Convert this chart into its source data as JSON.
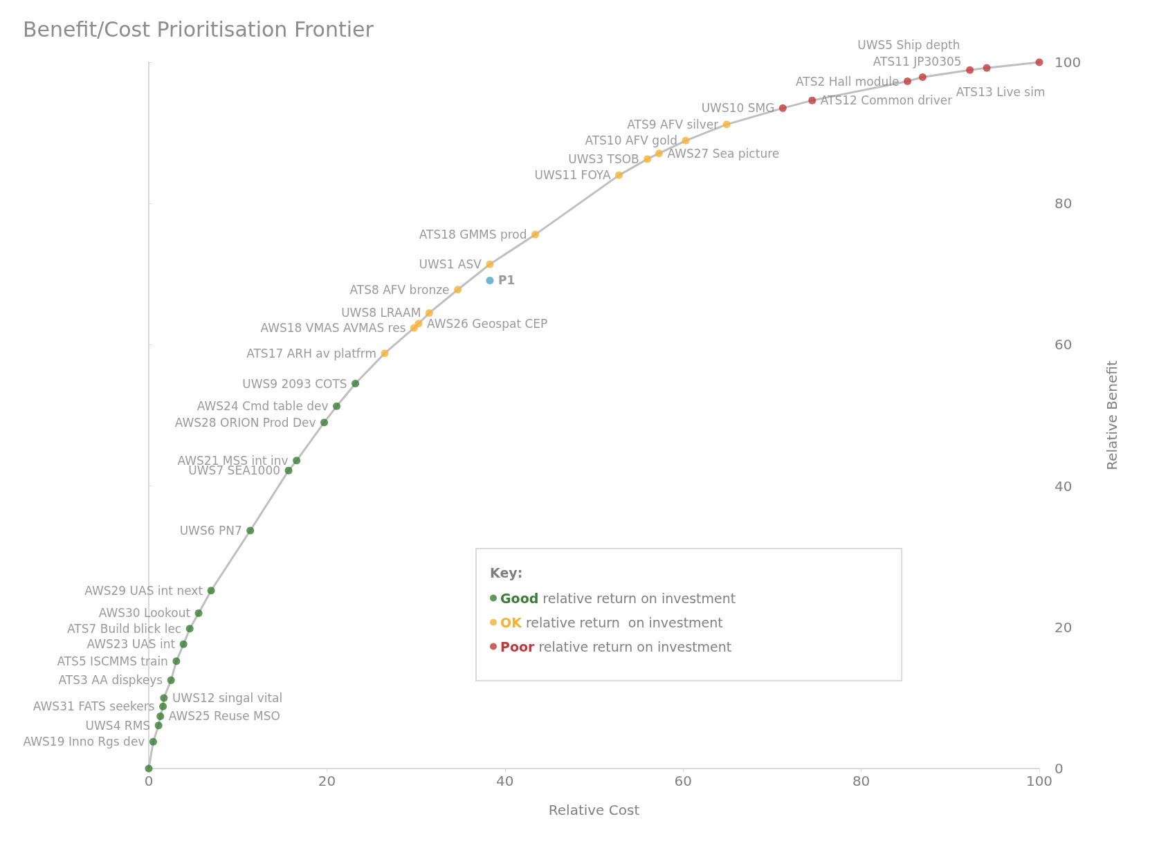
{
  "chart_data": {
    "type": "scatter",
    "title": "Benefit/Cost Prioritisation Frontier",
    "xlabel": "Relative Cost",
    "ylabel": "Relative Benefit",
    "legend_title": "Key:",
    "xlim": [
      0,
      100
    ],
    "ylim": [
      0,
      100
    ],
    "xticks": [
      0,
      20,
      40,
      60,
      80,
      100
    ],
    "yticks": [
      0,
      20,
      40,
      60,
      80,
      100
    ],
    "grid": false,
    "legend": "bottom right",
    "marker": "circle",
    "series": [
      {
        "type": "line",
        "color": "#bfbfbf",
        "marker": "none",
        "x": [
          0,
          0.5,
          1.1,
          1.3,
          1.6,
          1.7,
          2.5,
          3.1,
          3.9,
          4.6,
          5.6,
          7.0,
          11.4,
          15.7,
          16.6,
          19.7,
          21.1,
          23.2,
          26.5,
          29.8,
          30.3,
          31.5,
          34.7,
          38.3,
          43.4,
          52.8,
          56.0,
          57.3,
          60.3,
          64.9,
          71.2,
          74.5,
          85.2,
          86.9,
          92.2,
          94.1,
          100
        ],
        "values": [
          0,
          3.8,
          6.1,
          7.4,
          8.8,
          10.0,
          12.5,
          15.2,
          17.6,
          19.8,
          22.0,
          25.2,
          33.7,
          42.2,
          43.6,
          49.0,
          51.3,
          54.5,
          58.8,
          62.4,
          63.0,
          64.5,
          67.8,
          71.4,
          75.6,
          84.0,
          86.3,
          87.1,
          88.9,
          91.2,
          93.5,
          94.6,
          97.3,
          97.9,
          98.9,
          99.2,
          100
        ]
      },
      {
        "name": "Good relative return on investment",
        "color": "#3a7d34",
        "x": [
          0,
          0.5,
          1.1,
          1.3,
          1.6,
          1.7,
          2.5,
          3.1,
          3.9,
          4.6,
          5.6,
          7.0,
          11.4,
          15.7,
          16.6,
          19.7,
          21.1,
          23.2
        ],
        "values": [
          0,
          3.8,
          6.1,
          7.4,
          8.8,
          10.0,
          12.5,
          15.2,
          17.6,
          19.8,
          22.0,
          25.2,
          33.7,
          42.2,
          43.6,
          49.0,
          51.3,
          54.5
        ]
      },
      {
        "name": "OK relative return  on investment",
        "color": "#f5b335",
        "x": [
          26.5,
          29.8,
          30.3,
          31.5,
          34.7,
          38.3,
          43.4,
          52.8,
          56.0,
          57.3,
          60.3,
          64.9
        ],
        "values": [
          58.8,
          62.4,
          63.0,
          64.5,
          67.8,
          71.4,
          75.6,
          84.0,
          86.3,
          87.1,
          88.9,
          91.2
        ]
      },
      {
        "name": "Poor relative return on investment",
        "color": "#c0393b",
        "x": [
          71.2,
          74.5,
          85.2,
          86.9,
          92.2,
          94.1,
          100
        ],
        "values": [
          93.5,
          94.6,
          97.3,
          97.9,
          98.9,
          99.2,
          100
        ]
      },
      {
        "color": "#4aa3c8",
        "x": [
          38.3
        ],
        "values": [
          69.1
        ]
      }
    ],
    "annotations": [
      {
        "text": "AWS19 Inno Rgs dev",
        "x": 0.5,
        "y": 3.8
      },
      {
        "text": "UWS4 RMS",
        "x": 1.1,
        "y": 6.1
      },
      {
        "text": "AWS25 Reuse MSO",
        "x": 1.3,
        "y": 7.4
      },
      {
        "text": "AWS31 FATS seekers",
        "x": 1.6,
        "y": 8.8
      },
      {
        "text": "UWS12 singal vital",
        "x": 1.7,
        "y": 10.0
      },
      {
        "text": "ATS3 AA dispkeys",
        "x": 2.5,
        "y": 12.5
      },
      {
        "text": "ATS5 ISCMMS train",
        "x": 3.1,
        "y": 15.2
      },
      {
        "text": "AWS23 UAS int",
        "x": 3.9,
        "y": 17.6
      },
      {
        "text": "ATS7 Build blick lec",
        "x": 4.6,
        "y": 19.8
      },
      {
        "text": "AWS30 Lookout",
        "x": 5.6,
        "y": 22.0
      },
      {
        "text": "AWS29 UAS int next",
        "x": 7.0,
        "y": 25.2
      },
      {
        "text": "UWS6 PN7",
        "x": 11.4,
        "y": 33.7
      },
      {
        "text": "UWS7 SEA1000",
        "x": 15.7,
        "y": 42.2
      },
      {
        "text": "AWS21 MSS int inv",
        "x": 16.6,
        "y": 43.6
      },
      {
        "text": "AWS28 ORION Prod Dev",
        "x": 19.7,
        "y": 49.0
      },
      {
        "text": "AWS24 Cmd table dev",
        "x": 21.1,
        "y": 51.3
      },
      {
        "text": "UWS9 2093 COTS",
        "x": 23.2,
        "y": 54.5
      },
      {
        "text": "ATS17 ARH av platfrm",
        "x": 26.5,
        "y": 58.8
      },
      {
        "text": "AWS18 VMAS AVMAS res",
        "x": 29.8,
        "y": 62.4
      },
      {
        "text": "AWS26 Geospat CEP",
        "x": 30.3,
        "y": 63.0
      },
      {
        "text": "UWS8 LRAAM",
        "x": 31.5,
        "y": 64.5
      },
      {
        "text": "ATS8 AFV bronze",
        "x": 34.7,
        "y": 67.8
      },
      {
        "text": "UWS1 ASV",
        "x": 38.3,
        "y": 71.4
      },
      {
        "text": "ATS18 GMMS prod",
        "x": 43.4,
        "y": 75.6
      },
      {
        "text": "UWS11 FOYA",
        "x": 52.8,
        "y": 84.0
      },
      {
        "text": "UWS3 TSOB",
        "x": 56.0,
        "y": 86.3
      },
      {
        "text": "AWS27 Sea picture",
        "x": 57.3,
        "y": 87.1
      },
      {
        "text": "ATS10 AFV gold",
        "x": 60.3,
        "y": 88.9
      },
      {
        "text": "ATS9 AFV silver",
        "x": 64.9,
        "y": 91.2
      },
      {
        "text": "UWS10 SMG",
        "x": 71.2,
        "y": 93.5
      },
      {
        "text": "ATS12 Common driver",
        "x": 74.5,
        "y": 94.6
      },
      {
        "text": "ATS2 Hall module",
        "x": 85.2,
        "y": 97.3
      },
      {
        "text": "UWS5 Ship depth",
        "x": 86.9,
        "y": 97.9
      },
      {
        "text": "ATS11 JP30305",
        "x": 92.2,
        "y": 98.9
      },
      {
        "text": "ATS13 Live sim",
        "x": 94.1,
        "y": 99.2
      },
      {
        "text": "P1",
        "x": 38.3,
        "y": 69.1
      }
    ]
  }
}
